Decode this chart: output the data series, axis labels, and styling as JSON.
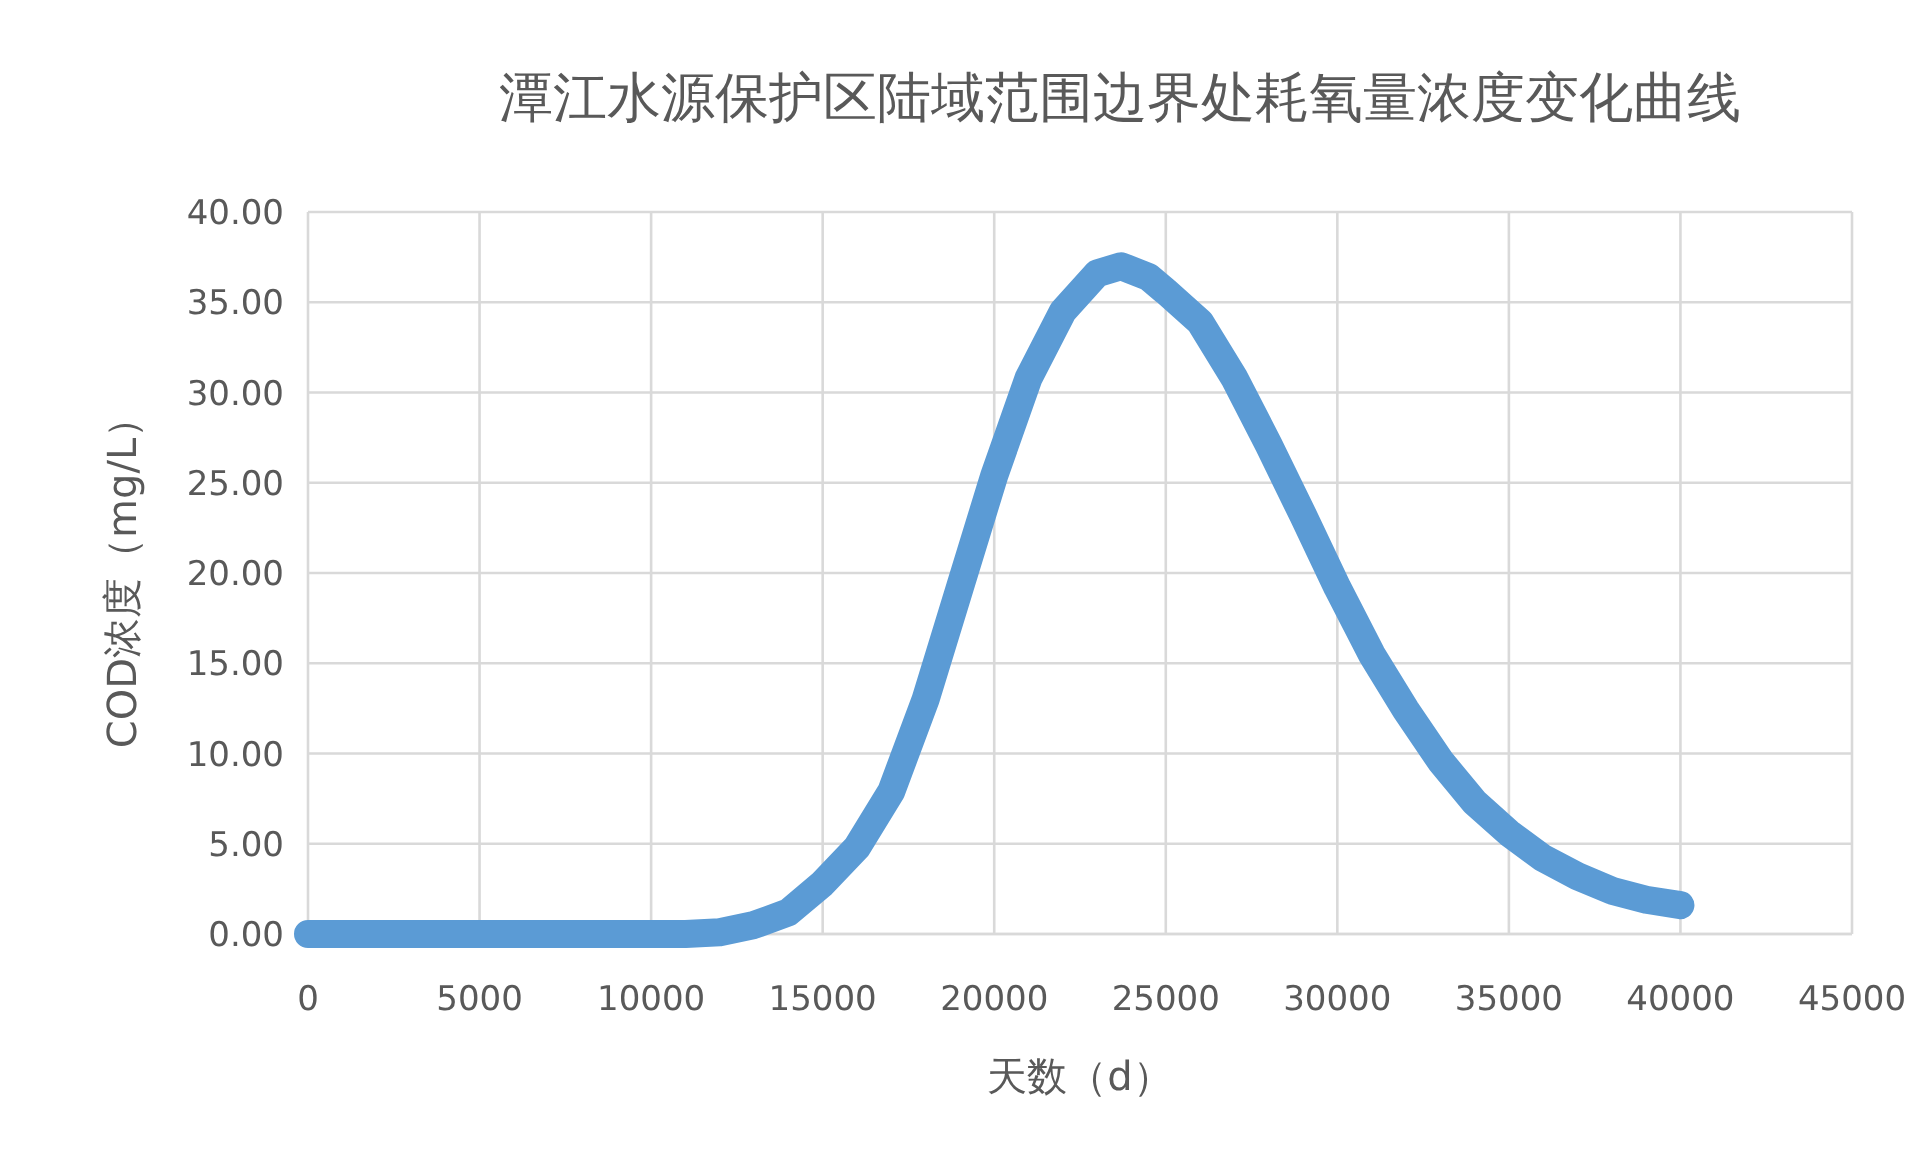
{
  "chart_data": {
    "type": "line",
    "title": "潭江水源保护区陆域范围边界处耗氧量浓度变化曲线",
    "xlabel": "天数（d）",
    "ylabel": "COD浓度（mg/L）",
    "x": [
      0,
      5000,
      10000,
      11000,
      12000,
      13000,
      14000,
      15000,
      16000,
      17000,
      18000,
      19000,
      20000,
      21000,
      22000,
      23000,
      23700,
      24500,
      25000,
      26000,
      27000,
      28000,
      29000,
      30000,
      31000,
      32000,
      33000,
      34000,
      35000,
      36000,
      37000,
      38000,
      39000,
      40000
    ],
    "series": [
      {
        "color": "#5b9bd5",
        "values": [
          0,
          0,
          0,
          0,
          0.1,
          0.5,
          1.2,
          2.8,
          4.8,
          7.9,
          13,
          19.2,
          25.4,
          30.8,
          34.5,
          36.6,
          37.0,
          36.4,
          35.6,
          33.9,
          30.8,
          27.1,
          23.2,
          19.2,
          15.5,
          12.4,
          9.6,
          7.3,
          5.6,
          4.2,
          3.2,
          2.4,
          1.9,
          1.6
        ]
      }
    ],
    "xlim": [
      0,
      45000
    ],
    "xticks": [
      0,
      5000,
      10000,
      15000,
      20000,
      25000,
      30000,
      35000,
      40000,
      45000
    ],
    "ylim": [
      0,
      40
    ],
    "yticks": [
      {
        "value": 0,
        "label": "0.00"
      },
      {
        "value": 5,
        "label": "5.00"
      },
      {
        "value": 10,
        "label": "10.00"
      },
      {
        "value": 15,
        "label": "15.00"
      },
      {
        "value": 20,
        "label": "20.00"
      },
      {
        "value": 25,
        "label": "25.00"
      },
      {
        "value": 30,
        "label": "30.00"
      },
      {
        "value": 35,
        "label": "35.00"
      },
      {
        "value": 40,
        "label": "40.00"
      }
    ],
    "grid": true,
    "line_style": "solid"
  }
}
